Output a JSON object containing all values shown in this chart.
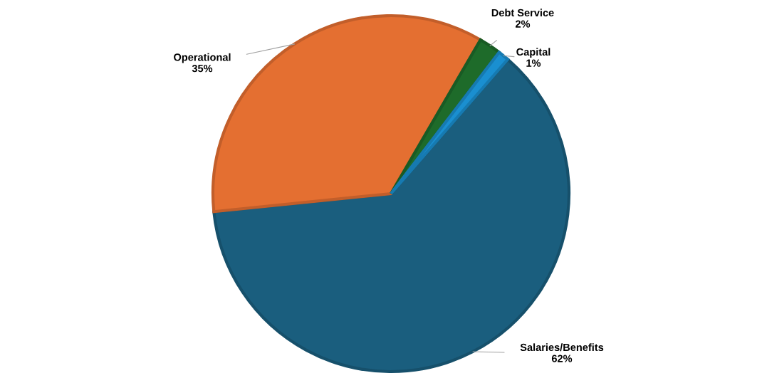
{
  "chart_data": {
    "type": "pie",
    "categories": [
      "Salaries/Benefits",
      "Operational",
      "Debt Service",
      "Capital"
    ],
    "values": [
      62,
      35,
      2,
      1
    ],
    "colors": [
      "#1a5e7e",
      "#e46f31",
      "#1e6b2a",
      "#1a8fd0"
    ],
    "value_labels": [
      "62%",
      "35%",
      "2%",
      "1%"
    ]
  }
}
